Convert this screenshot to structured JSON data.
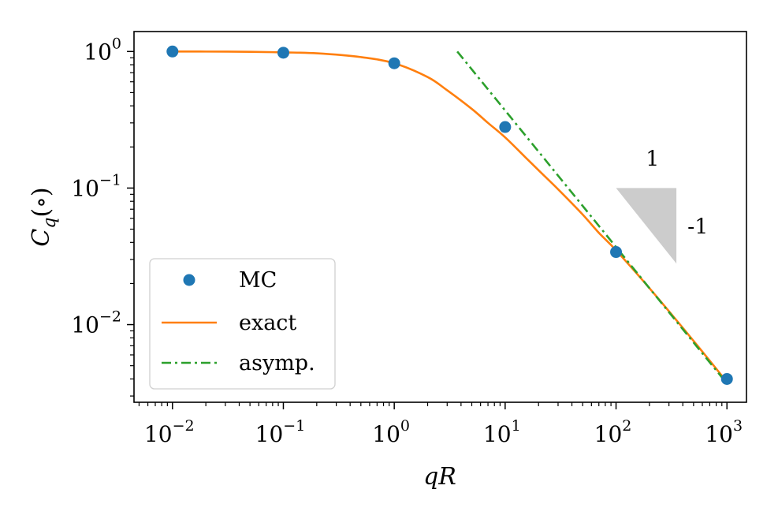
{
  "chart_data": {
    "type": "line",
    "xlabel": "qR",
    "ylabel": "Cq(∘)",
    "ylabel_parts": {
      "base": "C",
      "subscript": "q",
      "argument": "(∘)"
    },
    "x_scale": "log",
    "y_scale": "log",
    "xlim": [
      0.0045,
      1500
    ],
    "ylim": [
      0.0027,
      1.4
    ],
    "grid": false,
    "legend_placement": "lower-left",
    "x_ticks": [
      {
        "value": 0.01,
        "base": "10",
        "exp": "−2"
      },
      {
        "value": 0.1,
        "base": "10",
        "exp": "−1"
      },
      {
        "value": 1,
        "base": "10",
        "exp": "0"
      },
      {
        "value": 10,
        "base": "10",
        "exp": "1"
      },
      {
        "value": 100,
        "base": "10",
        "exp": "2"
      },
      {
        "value": 1000,
        "base": "10",
        "exp": "3"
      }
    ],
    "y_ticks": [
      {
        "value": 0.01,
        "base": "10",
        "exp": "−2"
      },
      {
        "value": 0.1,
        "base": "10",
        "exp": "−1"
      },
      {
        "value": 1,
        "base": "10",
        "exp": "0"
      }
    ],
    "series": [
      {
        "name": "MC",
        "kind": "scatter",
        "color": "#1f77b4",
        "x": [
          0.01,
          0.1,
          1,
          10,
          100,
          1000
        ],
        "y": [
          1.0,
          0.98,
          0.82,
          0.28,
          0.034,
          0.004
        ]
      },
      {
        "name": "exact",
        "kind": "line",
        "color": "#ff7f0e",
        "x": [
          0.01,
          0.02,
          0.05,
          0.1,
          0.2,
          0.5,
          1,
          2,
          3,
          5,
          7,
          10,
          15,
          20,
          30,
          50,
          70,
          100,
          200,
          500,
          1000
        ],
        "y": [
          1.0,
          0.999,
          0.995,
          0.985,
          0.97,
          0.91,
          0.82,
          0.65,
          0.52,
          0.38,
          0.3,
          0.235,
          0.17,
          0.135,
          0.098,
          0.064,
          0.047,
          0.035,
          0.0185,
          0.0076,
          0.0038
        ]
      },
      {
        "name": "asymp.",
        "kind": "line",
        "dash": "dashdot",
        "color": "#2ca02c",
        "x": [
          3.7,
          1000
        ],
        "y": [
          1.0,
          0.0037
        ]
      }
    ],
    "annotations": [
      {
        "text": "1",
        "kind": "slope-run"
      },
      {
        "text": "-1",
        "kind": "slope-rise"
      }
    ],
    "slope_triangle": {
      "color": "#cccccc",
      "x": [
        100,
        350
      ],
      "y": [
        0.1,
        0.028
      ]
    }
  }
}
